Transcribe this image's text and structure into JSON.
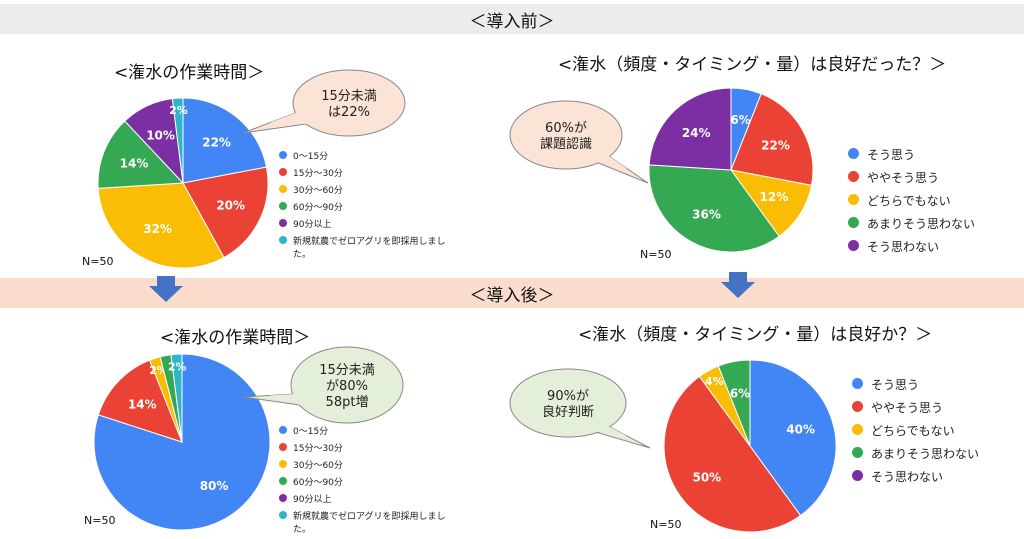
{
  "bands": {
    "before": "＜導入前＞",
    "after": "＜導入後＞"
  },
  "colors": {
    "blue": "#4285f4",
    "red": "#ea4335",
    "yellow": "#fbbc04",
    "green": "#34a853",
    "purple": "#7b2fa3",
    "teal": "#2fb6c6",
    "arrow": "#4472c4",
    "bubble_before_fill": "#fbe3d5",
    "bubble_after_fill": "#e4efd9"
  },
  "charts": {
    "before_time": {
      "title": "<潅水の作業時間＞",
      "n": "N=50",
      "bubble": [
        "15分未満",
        "は22%"
      ],
      "legend": [
        {
          "label": "0～15分",
          "color": "#4285f4"
        },
        {
          "label": "15分～30分",
          "color": "#ea4335"
        },
        {
          "label": "30分～60分",
          "color": "#fbbc04"
        },
        {
          "label": "60分～90分",
          "color": "#34a853"
        },
        {
          "label": "90分以上",
          "color": "#7b2fa3"
        },
        {
          "label": "新規就農でゼロアグリを即採用しました。",
          "color": "#2fb6c6"
        }
      ]
    },
    "before_eval": {
      "title": "<潅水（頻度・タイミング・量）は良好だった？＞",
      "n": "N=50",
      "bubble": [
        "60%が",
        "課題認識"
      ],
      "legend": [
        {
          "label": "そう思う",
          "color": "#4285f4"
        },
        {
          "label": "ややそう思う",
          "color": "#ea4335"
        },
        {
          "label": "どちらでもない",
          "color": "#fbbc04"
        },
        {
          "label": "あまりそう思わない",
          "color": "#34a853"
        },
        {
          "label": "そう思わない",
          "color": "#7b2fa3"
        }
      ]
    },
    "after_time": {
      "title": "<潅水の作業時間＞",
      "n": "N=50",
      "bubble": [
        "15分未満",
        "が80%",
        "58pt増"
      ],
      "legend": [
        {
          "label": "0～15分",
          "color": "#4285f4"
        },
        {
          "label": "15分～30分",
          "color": "#ea4335"
        },
        {
          "label": "30分～60分",
          "color": "#fbbc04"
        },
        {
          "label": "60分～90分",
          "color": "#34a853"
        },
        {
          "label": "90分以上",
          "color": "#7b2fa3"
        },
        {
          "label": "新規就農でゼロアグリを即採用しました。",
          "color": "#2fb6c6"
        }
      ]
    },
    "after_eval": {
      "title": "<潅水（頻度・タイミング・量）は良好か？＞",
      "n": "N=50",
      "bubble": [
        "90%が",
        "良好判断"
      ],
      "legend": [
        {
          "label": "そう思う",
          "color": "#4285f4"
        },
        {
          "label": "ややそう思う",
          "color": "#ea4335"
        },
        {
          "label": "どちらでもない",
          "color": "#fbbc04"
        },
        {
          "label": "あまりそう思わない",
          "color": "#34a853"
        },
        {
          "label": "そう思わない",
          "color": "#7b2fa3"
        }
      ]
    }
  },
  "chart_data": [
    {
      "type": "pie",
      "title": "<潅水の作業時間＞",
      "categories": [
        "0～15分",
        "15分～30分",
        "30分～60分",
        "60分～90分",
        "90分以上",
        "新規就農でゼロアグリを即採用しました。"
      ],
      "values": [
        22,
        20,
        32,
        14,
        10,
        2
      ],
      "labels": [
        "22%",
        "20%",
        "32%",
        "14%",
        "10%",
        "2%"
      ],
      "colors": [
        "#4285f4",
        "#ea4335",
        "#fbbc04",
        "#34a853",
        "#7b2fa3",
        "#2fb6c6"
      ]
    },
    {
      "type": "pie",
      "title": "<潅水（頻度・タイミング・量）は良好だった？＞",
      "categories": [
        "そう思う",
        "ややそう思う",
        "どちらでもない",
        "あまりそう思わない",
        "そう思わない"
      ],
      "values": [
        6,
        22,
        12,
        36,
        24
      ],
      "labels": [
        "6%",
        "22%",
        "12%",
        "36%",
        "24%"
      ],
      "colors": [
        "#4285f4",
        "#ea4335",
        "#fbbc04",
        "#34a853",
        "#7b2fa3"
      ]
    },
    {
      "type": "pie",
      "title": "<潅水の作業時間＞",
      "categories": [
        "0～15分",
        "15分～30分",
        "30分～60分",
        "60分～90分",
        "90分以上",
        "新規就農でゼロアグリを即採用しました。"
      ],
      "values": [
        80,
        14,
        2,
        2,
        0,
        2
      ],
      "labels": [
        "80%",
        "14%",
        "2%",
        "",
        "",
        "2%"
      ],
      "colors": [
        "#4285f4",
        "#ea4335",
        "#fbbc04",
        "#34a853",
        "#7b2fa3",
        "#2fb6c6"
      ]
    },
    {
      "type": "pie",
      "title": "<潅水（頻度・タイミング・量）は良好か？＞",
      "categories": [
        "そう思う",
        "ややそう思う",
        "どちらでもない",
        "あまりそう思わない",
        "そう思わない"
      ],
      "values": [
        40,
        50,
        4,
        6,
        0
      ],
      "labels": [
        "40%",
        "50%",
        "4%",
        "6%",
        ""
      ],
      "colors": [
        "#4285f4",
        "#ea4335",
        "#fbbc04",
        "#34a853",
        "#7b2fa3"
      ]
    }
  ]
}
